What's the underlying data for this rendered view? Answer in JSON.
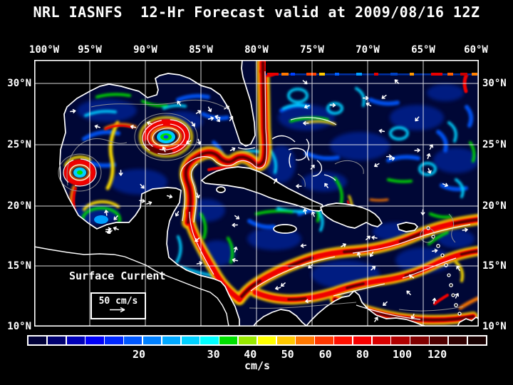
{
  "title": "NRL IASNFS  12-Hr Forecast valid at 2009/08/16 12Z",
  "axes": {
    "lon_labels": [
      "100°W",
      "95°W",
      "90°W",
      "85°W",
      "80°W",
      "75°W",
      "70°W",
      "65°W",
      "60°W"
    ],
    "lat_labels_left": [
      "30°N",
      "25°N",
      "20°N",
      "15°N",
      "10°N"
    ],
    "lat_labels_right": [
      "30°N",
      "25°N",
      "20°N",
      "15°N",
      "10°N"
    ]
  },
  "legend": {
    "label": "Surface Current",
    "reference_value": "50 cm/s"
  },
  "colorbar": {
    "units": "cm/s",
    "tick_labels": [
      "20",
      "30",
      "40",
      "50",
      "60",
      "80",
      "100",
      "120"
    ],
    "colors": [
      "#000038",
      "#000070",
      "#0000b8",
      "#0000f8",
      "#0028ff",
      "#0058ff",
      "#0080ff",
      "#00a8ff",
      "#00d0ff",
      "#00ffff",
      "#00e000",
      "#98e800",
      "#ffff00",
      "#ffc800",
      "#ff7800",
      "#ff3800",
      "#ff1000",
      "#f80000",
      "#d80000",
      "#b00000",
      "#800000",
      "#500000",
      "#300000",
      "#180000"
    ]
  }
}
